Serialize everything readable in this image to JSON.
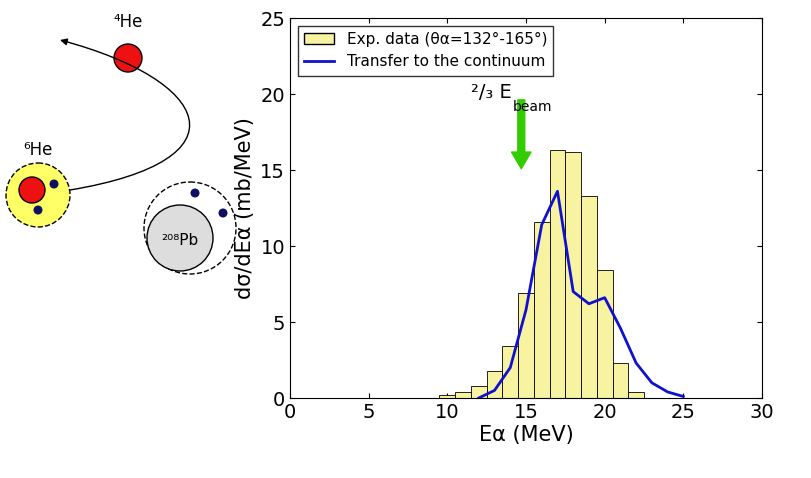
{
  "chart_data": {
    "type": "histogram",
    "xlabel": "Eα (MeV)",
    "ylabel": "dσ/dEα (mb/MeV)",
    "xlim": [
      0,
      30
    ],
    "xticks": [
      0,
      5,
      10,
      15,
      20,
      25,
      30
    ],
    "ylim": [
      0,
      25
    ],
    "yticks": [
      0,
      5,
      10,
      15,
      20,
      25
    ],
    "legend": "upper left",
    "bins": [
      9.5,
      10.5,
      11.5,
      12.5,
      13.5,
      14.5,
      15.5,
      16.5,
      17.5,
      18.5,
      19.5,
      20.5,
      21.5,
      22.5
    ],
    "series": [
      {
        "name": "Exp. data (θα=132°-165°)",
        "type": "histogram",
        "color": "#f7f3a0",
        "values": [
          0.2,
          0.4,
          0.8,
          1.8,
          3.4,
          6.9,
          11.6,
          16.3,
          16.2,
          13.3,
          8.4,
          2.3,
          0.4
        ]
      },
      {
        "name": "Transfer to the continuum",
        "type": "line",
        "color": "#1010d0",
        "x": [
          12,
          13,
          14,
          15,
          16,
          17,
          18,
          19,
          20,
          21,
          22,
          23,
          24,
          25
        ],
        "values": [
          0.0,
          0.5,
          2.0,
          5.8,
          11.4,
          13.6,
          7.0,
          6.2,
          6.6,
          4.6,
          2.3,
          1.0,
          0.4,
          0.1
        ]
      }
    ],
    "annotation": {
      "text": "²/₃ E",
      "subscript": "beam",
      "x": 14.7,
      "y_from": 19.8,
      "y_to": 14.9,
      "color": "#33cc00"
    }
  },
  "diagram": {
    "labels": {
      "projectile": "⁶He",
      "ejectile": "⁴He",
      "target": "²⁰⁸Pb"
    }
  }
}
